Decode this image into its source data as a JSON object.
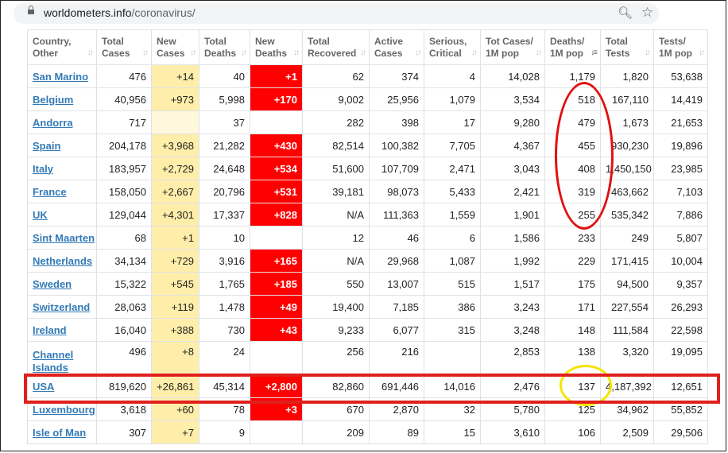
{
  "browser": {
    "url_host": "worldometers.info",
    "url_path": "/coronavirus/",
    "zoom_icon": "magnifier-icon",
    "star_icon": "star-icon"
  },
  "table": {
    "columns": [
      "Country,\nOther",
      "Total\nCases",
      "New\nCases",
      "Total\nDeaths",
      "New\nDeaths",
      "Total\nRecovered",
      "Active\nCases",
      "Serious,\nCritical",
      "Tot Cases/\n1M pop",
      "Deaths/\n1M pop",
      "Total\nTests",
      "Tests/\n1M pop"
    ],
    "rows": [
      [
        "San Marino",
        "476",
        "+14",
        "40",
        "+1",
        "62",
        "374",
        "4",
        "14,028",
        "1,179",
        "1,820",
        "53,638"
      ],
      [
        "Belgium",
        "40,956",
        "+973",
        "5,998",
        "+170",
        "9,002",
        "25,956",
        "1,079",
        "3,534",
        "518",
        "167,110",
        "14,419"
      ],
      [
        "Andorra",
        "717",
        "",
        "37",
        "",
        "282",
        "398",
        "17",
        "9,280",
        "479",
        "1,673",
        "21,653"
      ],
      [
        "Spain",
        "204,178",
        "+3,968",
        "21,282",
        "+430",
        "82,514",
        "100,382",
        "7,705",
        "4,367",
        "455",
        "930,230",
        "19,896"
      ],
      [
        "Italy",
        "183,957",
        "+2,729",
        "24,648",
        "+534",
        "51,600",
        "107,709",
        "2,471",
        "3,043",
        "408",
        "1,450,150",
        "23,985"
      ],
      [
        "France",
        "158,050",
        "+2,667",
        "20,796",
        "+531",
        "39,181",
        "98,073",
        "5,433",
        "2,421",
        "319",
        "463,662",
        "7,103"
      ],
      [
        "UK",
        "129,044",
        "+4,301",
        "17,337",
        "+828",
        "N/A",
        "111,363",
        "1,559",
        "1,901",
        "255",
        "535,342",
        "7,886"
      ],
      [
        "Sint Maarten",
        "68",
        "+1",
        "10",
        "",
        "12",
        "46",
        "6",
        "1,586",
        "233",
        "249",
        "5,807"
      ],
      [
        "Netherlands",
        "34,134",
        "+729",
        "3,916",
        "+165",
        "N/A",
        "29,968",
        "1,087",
        "1,992",
        "229",
        "171,415",
        "10,004"
      ],
      [
        "Sweden",
        "15,322",
        "+545",
        "1,765",
        "+185",
        "550",
        "13,007",
        "515",
        "1,517",
        "175",
        "94,500",
        "9,357"
      ],
      [
        "Switzerland",
        "28,063",
        "+119",
        "1,478",
        "+49",
        "19,400",
        "7,185",
        "386",
        "3,243",
        "171",
        "227,554",
        "26,293"
      ],
      [
        "Ireland",
        "16,040",
        "+388",
        "730",
        "+43",
        "9,233",
        "6,077",
        "315",
        "3,248",
        "148",
        "111,584",
        "22,598"
      ],
      [
        "Channel Islands",
        "496",
        "+8",
        "24",
        "",
        "256",
        "216",
        "",
        "2,853",
        "138",
        "3,320",
        "19,095"
      ],
      [
        "USA",
        "819,620",
        "+26,861",
        "45,314",
        "+2,800",
        "82,860",
        "691,446",
        "14,016",
        "2,476",
        "137",
        "4,187,392",
        "12,651"
      ],
      [
        "Luxembourg",
        "3,618",
        "+60",
        "78",
        "+3",
        "670",
        "2,870",
        "32",
        "5,780",
        "125",
        "34,962",
        "55,852"
      ],
      [
        "Isle of Man",
        "307",
        "+7",
        "9",
        "",
        "209",
        "89",
        "15",
        "3,610",
        "106",
        "2,509",
        "29,506"
      ]
    ],
    "sorted_column": "Deaths/\n1M pop"
  },
  "annotations": {
    "red_ellipse_color": "#e01010",
    "yellow_circle_color": "#f5e400",
    "highlight_row": "USA"
  }
}
